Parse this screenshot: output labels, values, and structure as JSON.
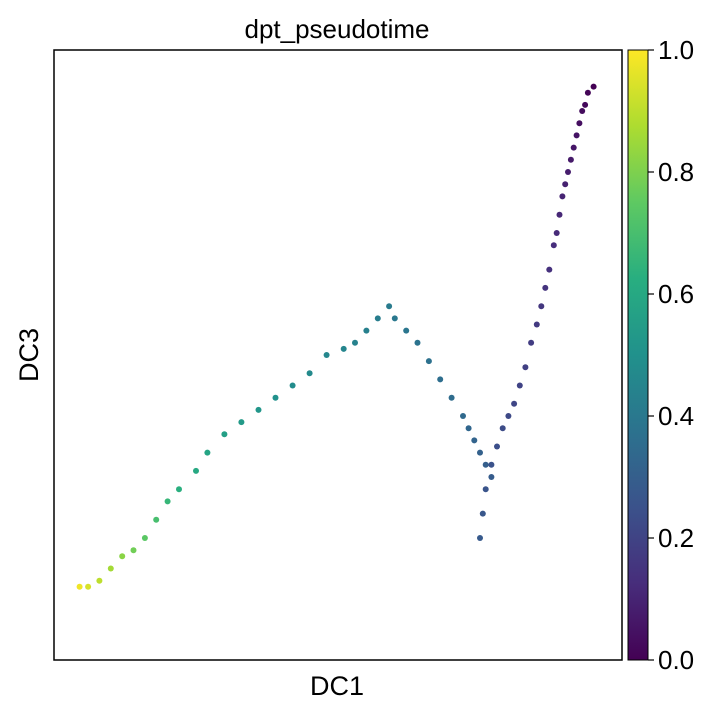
{
  "chart_data": {
    "type": "scatter",
    "title": "dpt_pseudotime",
    "xlabel": "DC1",
    "ylabel": "DC3",
    "xlim": [
      0,
      1
    ],
    "ylim": [
      0,
      1
    ],
    "grid": false,
    "colormap": "viridis",
    "colorbar": {
      "range": [
        0.0,
        1.0
      ],
      "ticks": [
        "0.0",
        "0.2",
        "0.4",
        "0.6",
        "0.8",
        "1.0"
      ]
    },
    "points": [
      [
        0.95,
        0.94,
        0.0
      ],
      [
        0.94,
        0.93,
        0.01
      ],
      [
        0.935,
        0.91,
        0.02
      ],
      [
        0.93,
        0.9,
        0.03
      ],
      [
        0.925,
        0.88,
        0.04
      ],
      [
        0.92,
        0.86,
        0.05
      ],
      [
        0.915,
        0.84,
        0.06
      ],
      [
        0.91,
        0.82,
        0.07
      ],
      [
        0.905,
        0.8,
        0.08
      ],
      [
        0.9,
        0.78,
        0.09
      ],
      [
        0.895,
        0.76,
        0.1
      ],
      [
        0.89,
        0.73,
        0.11
      ],
      [
        0.885,
        0.7,
        0.12
      ],
      [
        0.88,
        0.68,
        0.13
      ],
      [
        0.872,
        0.64,
        0.14
      ],
      [
        0.865,
        0.61,
        0.15
      ],
      [
        0.858,
        0.58,
        0.16
      ],
      [
        0.85,
        0.55,
        0.17
      ],
      [
        0.84,
        0.52,
        0.18
      ],
      [
        0.83,
        0.48,
        0.19
      ],
      [
        0.82,
        0.45,
        0.2
      ],
      [
        0.81,
        0.42,
        0.21
      ],
      [
        0.8,
        0.4,
        0.22
      ],
      [
        0.79,
        0.38,
        0.23
      ],
      [
        0.78,
        0.35,
        0.24
      ],
      [
        0.77,
        0.32,
        0.25
      ],
      [
        0.76,
        0.28,
        0.26
      ],
      [
        0.755,
        0.24,
        0.27
      ],
      [
        0.75,
        0.2,
        0.28
      ],
      [
        0.77,
        0.3,
        0.29
      ],
      [
        0.76,
        0.32,
        0.3
      ],
      [
        0.75,
        0.34,
        0.31
      ],
      [
        0.74,
        0.36,
        0.32
      ],
      [
        0.73,
        0.38,
        0.33
      ],
      [
        0.72,
        0.4,
        0.34
      ],
      [
        0.7,
        0.43,
        0.35
      ],
      [
        0.68,
        0.46,
        0.36
      ],
      [
        0.66,
        0.49,
        0.37
      ],
      [
        0.64,
        0.52,
        0.38
      ],
      [
        0.62,
        0.54,
        0.39
      ],
      [
        0.6,
        0.56,
        0.4
      ],
      [
        0.59,
        0.58,
        0.41
      ],
      [
        0.57,
        0.56,
        0.42
      ],
      [
        0.55,
        0.54,
        0.43
      ],
      [
        0.53,
        0.52,
        0.44
      ],
      [
        0.51,
        0.51,
        0.45
      ],
      [
        0.48,
        0.5,
        0.46
      ],
      [
        0.45,
        0.47,
        0.47
      ],
      [
        0.42,
        0.45,
        0.48
      ],
      [
        0.39,
        0.43,
        0.5
      ],
      [
        0.36,
        0.41,
        0.52
      ],
      [
        0.33,
        0.39,
        0.54
      ],
      [
        0.3,
        0.37,
        0.56
      ],
      [
        0.27,
        0.34,
        0.58
      ],
      [
        0.25,
        0.31,
        0.6
      ],
      [
        0.22,
        0.28,
        0.63
      ],
      [
        0.2,
        0.26,
        0.66
      ],
      [
        0.18,
        0.23,
        0.7
      ],
      [
        0.16,
        0.2,
        0.74
      ],
      [
        0.14,
        0.18,
        0.78
      ],
      [
        0.12,
        0.17,
        0.82
      ],
      [
        0.1,
        0.15,
        0.86
      ],
      [
        0.08,
        0.13,
        0.9
      ],
      [
        0.06,
        0.12,
        0.94
      ],
      [
        0.045,
        0.12,
        0.98
      ]
    ]
  }
}
